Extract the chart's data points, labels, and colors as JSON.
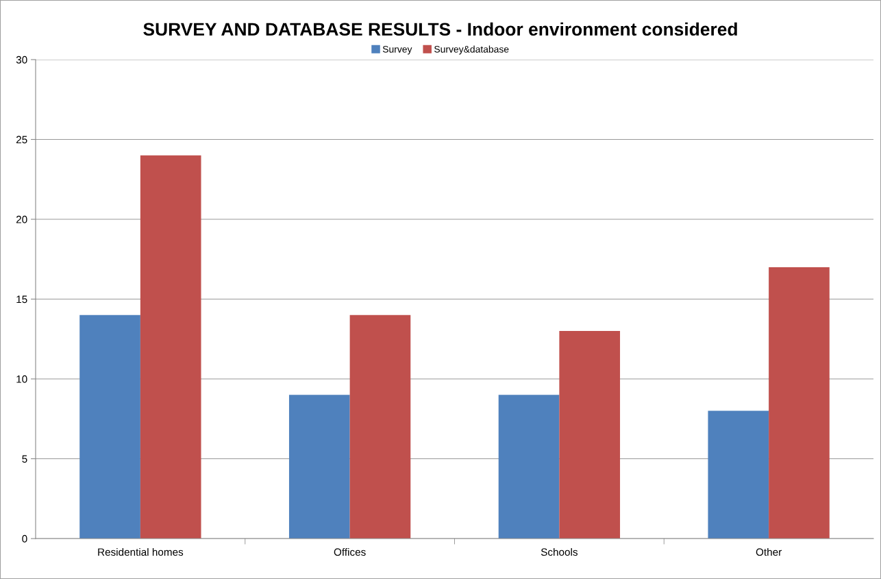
{
  "chart_data": {
    "type": "bar",
    "title": "SURVEY AND DATABASE RESULTS - Indoor environment considered",
    "categories": [
      "Residential homes",
      "Offices",
      "Schools",
      "Other"
    ],
    "series": [
      {
        "name": "Survey",
        "color": "#4f81bd",
        "values": [
          14,
          9,
          9,
          8
        ]
      },
      {
        "name": "Survey&database",
        "color": "#c0504d",
        "values": [
          24,
          14,
          13,
          17
        ]
      }
    ],
    "ylim": [
      0,
      30
    ],
    "yticks": [
      0,
      5,
      10,
      15,
      20,
      25,
      30
    ],
    "grid": "y",
    "legend": "top"
  }
}
